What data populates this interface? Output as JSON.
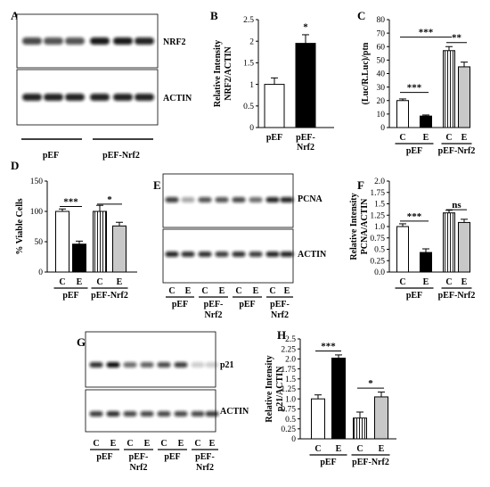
{
  "figure": {
    "panels": {
      "A": {
        "letter": "A",
        "bands": [
          "NRF2",
          "ACTIN"
        ],
        "groups": [
          "pEF",
          "pEF-Nrf2"
        ]
      },
      "E": {
        "letter": "E",
        "bands": [
          "PCNA",
          "ACTIN"
        ],
        "lanes": [
          "C",
          "E",
          "C",
          "E",
          "C",
          "E",
          "C",
          "E"
        ],
        "groups": [
          "pEF",
          "pEF-\nNrf2",
          "pEF",
          "pEF-\nNrf2"
        ]
      },
      "G": {
        "letter": "G",
        "bands": [
          "p21",
          "ACTIN"
        ],
        "lanes": [
          "C",
          "E",
          "C",
          "E",
          "C",
          "E",
          "C",
          "E"
        ],
        "groups": [
          "pEF",
          "pEF-\nNrf2",
          "pEF",
          "pEF-\nNrf2"
        ]
      }
    },
    "colors": {
      "black": "#000000",
      "white": "#ffffff",
      "gray": "#c8c8c8"
    }
  },
  "chart_data": [
    {
      "id": "B",
      "letter": "B",
      "type": "bar",
      "ylabel": "Relative Intensity\nNRF2/ACTIN",
      "ylim": [
        0,
        2.5
      ],
      "yticks": [
        "0",
        "0.5",
        "1",
        "1.5",
        "2",
        "2.5"
      ],
      "categories": [
        "pEF",
        "pEF-\nNrf2"
      ],
      "values": [
        1.0,
        1.95
      ],
      "errors": [
        0.15,
        0.2
      ],
      "fills": [
        "white",
        "black"
      ],
      "significance": [
        {
          "from": 1,
          "to": 1,
          "label": "*",
          "y": 2.22
        }
      ],
      "groups": []
    },
    {
      "id": "C",
      "letter": "C",
      "type": "bar",
      "ylabel": "(Luc/R.Luc)/ptn",
      "ylim": [
        0,
        80
      ],
      "yticks": [
        "0",
        "10",
        "20",
        "30",
        "40",
        "50",
        "60",
        "70",
        "80"
      ],
      "categories": [
        "C",
        "E",
        "C",
        "E"
      ],
      "values": [
        20,
        8.5,
        57,
        45
      ],
      "errors": [
        1.2,
        0.8,
        3,
        3.5
      ],
      "fills": [
        "white",
        "black",
        "stripe",
        "gray"
      ],
      "significance": [
        {
          "from": 0,
          "to": 1,
          "label": "***",
          "y": 26
        },
        {
          "from": 0,
          "to": 2,
          "label": "***",
          "y": 67
        },
        {
          "from": 2,
          "to": 3,
          "label": "**",
          "y": 63
        }
      ],
      "groups": [
        {
          "label": "pEF",
          "from": 0,
          "to": 1
        },
        {
          "label": "pEF-Nrf2",
          "from": 2,
          "to": 3
        }
      ]
    },
    {
      "id": "D",
      "letter": "D",
      "type": "bar",
      "ylabel": "% Viable Cells",
      "ylim": [
        0,
        150
      ],
      "yticks": [
        "0",
        "50",
        "100",
        "150"
      ],
      "categories": [
        "C",
        "E",
        "C",
        "E"
      ],
      "values": [
        100,
        46,
        100,
        76
      ],
      "errors": [
        4,
        5,
        10,
        6
      ],
      "fills": [
        "white",
        "black",
        "stripe",
        "gray"
      ],
      "significance": [
        {
          "from": 0,
          "to": 1,
          "label": "***",
          "y": 108
        },
        {
          "from": 2,
          "to": 3,
          "label": "*",
          "y": 112
        }
      ],
      "groups": [
        {
          "label": "pEF",
          "from": 0,
          "to": 1
        },
        {
          "label": "pEF-Nrf2",
          "from": 2,
          "to": 3
        }
      ]
    },
    {
      "id": "F",
      "letter": "F",
      "type": "bar",
      "ylabel": "Relative Intensity\nPCNA/ACTIN",
      "ylim": [
        0,
        2.0
      ],
      "yticks": [
        "0.0",
        "0.25",
        "0.5",
        "0.75",
        "1.0",
        "1.25",
        "1.5",
        "1.75",
        "2.0"
      ],
      "categories": [
        "C",
        "E",
        "C",
        "E"
      ],
      "values": [
        1.0,
        0.43,
        1.3,
        1.09
      ],
      "errors": [
        0.06,
        0.08,
        0.06,
        0.07
      ],
      "fills": [
        "white",
        "black",
        "stripe",
        "gray"
      ],
      "significance": [
        {
          "from": 0,
          "to": 1,
          "label": "***",
          "y": 1.12
        },
        {
          "from": 2,
          "to": 3,
          "label": "ns",
          "y": 1.37
        }
      ],
      "groups": [
        {
          "label": "pEF",
          "from": 0,
          "to": 1
        },
        {
          "label": "pEF-Nrf2",
          "from": 2,
          "to": 3
        }
      ]
    },
    {
      "id": "H",
      "letter": "H",
      "type": "bar",
      "ylabel": "Relative Intensity\np21/ACTIN",
      "ylim": [
        0,
        2.5
      ],
      "yticks": [
        "0",
        "0.25",
        "0.5",
        "0.75",
        "1.0",
        "1.25",
        "1.5",
        "1.75",
        "2.0",
        "2.25",
        "2.5"
      ],
      "categories": [
        "C",
        "E",
        "C",
        "E"
      ],
      "values": [
        1.0,
        2.02,
        0.52,
        1.05
      ],
      "errors": [
        0.1,
        0.08,
        0.15,
        0.12
      ],
      "fills": [
        "white",
        "black",
        "stripe",
        "gray"
      ],
      "significance": [
        {
          "from": 0,
          "to": 1,
          "label": "***",
          "y": 2.2
        },
        {
          "from": 2,
          "to": 3,
          "label": "*",
          "y": 1.27
        }
      ],
      "groups": [
        {
          "label": "pEF",
          "from": 0,
          "to": 1
        },
        {
          "label": "pEF-Nrf2",
          "from": 2,
          "to": 3
        }
      ]
    }
  ]
}
